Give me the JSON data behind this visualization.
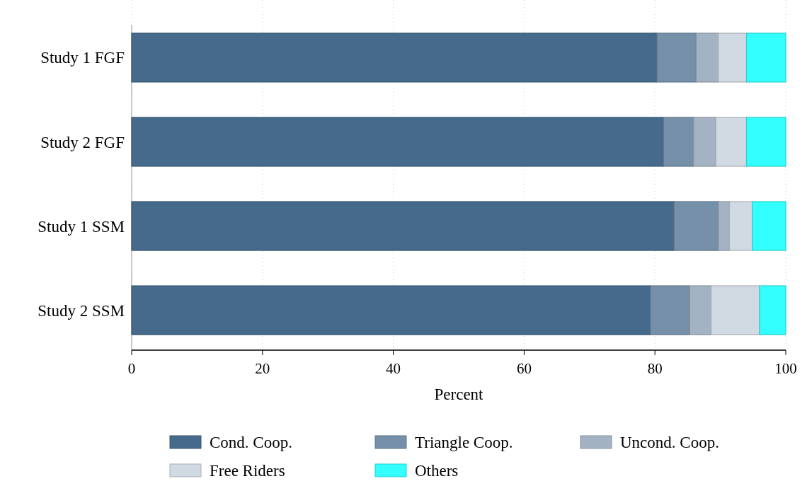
{
  "chart_data": {
    "type": "bar",
    "orientation": "horizontal",
    "stacked": true,
    "categories": [
      "Study 1 FGF",
      "Study 2 FGF",
      "Study 1 SSM",
      "Study 2 SSM"
    ],
    "series": [
      {
        "name": "Cond. Coop.",
        "color": "#466a8c",
        "values": [
          80.3,
          81.3,
          82.9,
          79.3
        ]
      },
      {
        "name": "Triangle Coop.",
        "color": "#7590a8",
        "values": [
          6.0,
          4.6,
          6.8,
          6.0
        ]
      },
      {
        "name": "Uncond. Coop.",
        "color": "#a3b3c3",
        "values": [
          3.4,
          3.4,
          1.7,
          3.3
        ]
      },
      {
        "name": "Free Riders",
        "color": "#d1d9e2",
        "values": [
          4.3,
          4.7,
          3.5,
          7.4
        ]
      },
      {
        "name": "Others",
        "color": "#33ffff",
        "values": [
          6.0,
          6.0,
          5.1,
          4.0
        ]
      }
    ],
    "xlabel": "Percent",
    "xlim": [
      0,
      100
    ],
    "xticks": [
      0,
      20,
      40,
      60,
      80,
      100
    ],
    "grid": "x",
    "legend": "bottom"
  }
}
